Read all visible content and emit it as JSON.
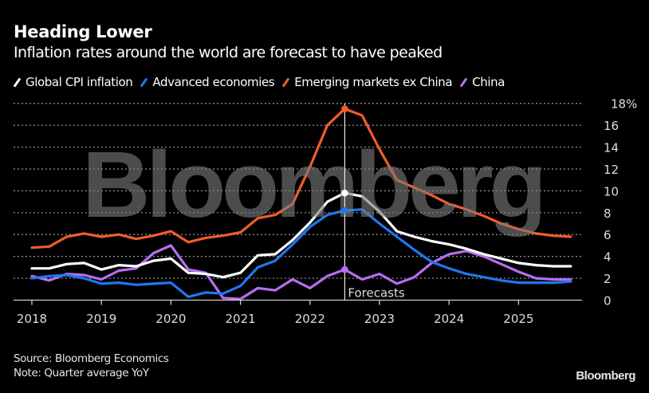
{
  "header": {
    "title": "Heading Lower",
    "subtitle": "Inflation rates around the world are forecast to have peaked"
  },
  "footer": {
    "source": "Source: Bloomberg Economics",
    "note": "Note: Quarter average YoY",
    "brand": "Bloomberg"
  },
  "watermark": "Bloomberg",
  "chart_data": {
    "type": "line",
    "title": "Heading Lower",
    "subtitle": "Inflation rates around the world are forecast to have peaked",
    "xlabel": "",
    "ylabel": "",
    "x_ticks": [
      "2018",
      "2019",
      "2020",
      "2021",
      "2022",
      "2023",
      "2024",
      "2025"
    ],
    "x_start": 2018.0,
    "x_step": 0.25,
    "xlim": [
      2018.0,
      2026.0
    ],
    "y_ticks": [
      "0",
      "2",
      "4",
      "6",
      "8",
      "10",
      "12",
      "14",
      "16",
      "18%"
    ],
    "ylim": [
      0,
      18
    ],
    "grid": true,
    "y_axis_side": "right",
    "legend_position": "top-left",
    "annotation": {
      "label": "Forecasts",
      "x": 2022.5
    },
    "series": [
      {
        "name": "Global CPI inflation",
        "color": "#ffffff",
        "values": [
          2.9,
          2.9,
          3.3,
          3.4,
          2.8,
          3.2,
          3.1,
          3.6,
          3.8,
          2.5,
          2.4,
          2.1,
          2.5,
          4.1,
          4.2,
          5.5,
          7.1,
          9.0,
          9.8,
          9.5,
          8.1,
          6.3,
          5.8,
          5.4,
          5.1,
          4.7,
          4.2,
          3.8,
          3.4,
          3.2,
          3.1,
          3.1
        ]
      },
      {
        "name": "Advanced economies",
        "color": "#1f77f0",
        "values": [
          2.0,
          2.2,
          2.3,
          2.0,
          1.5,
          1.6,
          1.4,
          1.5,
          1.6,
          0.3,
          0.7,
          0.6,
          1.3,
          3.0,
          3.6,
          5.1,
          6.7,
          7.8,
          8.2,
          8.3,
          7.0,
          5.8,
          4.6,
          3.5,
          2.9,
          2.4,
          2.1,
          1.8,
          1.6,
          1.6,
          1.6,
          1.7
        ]
      },
      {
        "name": "Emerging markets ex China",
        "color": "#f25c2b",
        "values": [
          4.8,
          4.9,
          5.8,
          6.1,
          5.8,
          6.0,
          5.6,
          5.9,
          6.3,
          5.3,
          5.7,
          5.9,
          6.2,
          7.5,
          7.8,
          8.8,
          12.2,
          16.0,
          17.5,
          16.9,
          13.8,
          11.0,
          10.3,
          9.6,
          8.8,
          8.3,
          7.7,
          7.0,
          6.5,
          6.1,
          5.9,
          5.8
        ]
      },
      {
        "name": "China",
        "color": "#b76ef0",
        "values": [
          2.2,
          1.8,
          2.4,
          2.3,
          1.9,
          2.7,
          2.9,
          4.3,
          5.0,
          2.8,
          2.5,
          0.2,
          0.1,
          1.1,
          0.9,
          1.9,
          1.1,
          2.2,
          2.8,
          1.9,
          2.4,
          1.5,
          2.1,
          3.4,
          4.2,
          4.5,
          4.0,
          3.3,
          2.6,
          2.0,
          1.9,
          1.9
        ]
      }
    ]
  }
}
